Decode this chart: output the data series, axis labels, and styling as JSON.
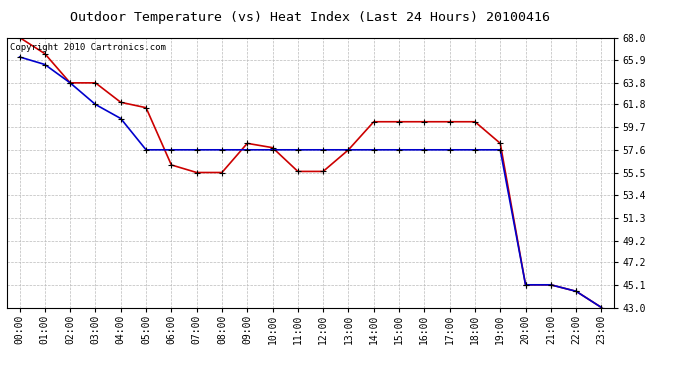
{
  "title": "Outdoor Temperature (vs) Heat Index (Last 24 Hours) 20100416",
  "copyright_text": "Copyright 2010 Cartronics.com",
  "x_labels": [
    "00:00",
    "01:00",
    "02:00",
    "03:00",
    "04:00",
    "05:00",
    "06:00",
    "07:00",
    "08:00",
    "09:00",
    "10:00",
    "11:00",
    "12:00",
    "13:00",
    "14:00",
    "15:00",
    "16:00",
    "17:00",
    "18:00",
    "19:00",
    "20:00",
    "21:00",
    "22:00",
    "23:00"
  ],
  "ylim": [
    43.0,
    68.0
  ],
  "yticks": [
    43.0,
    45.1,
    47.2,
    49.2,
    51.3,
    53.4,
    55.5,
    57.6,
    59.7,
    61.8,
    63.8,
    65.9,
    68.0
  ],
  "red_data": [
    68.0,
    66.5,
    63.8,
    63.8,
    62.0,
    61.5,
    56.2,
    55.5,
    55.5,
    58.2,
    57.8,
    55.6,
    55.6,
    57.6,
    60.2,
    60.2,
    60.2,
    60.2,
    60.2,
    58.2,
    45.1,
    45.1,
    44.5,
    43.0
  ],
  "blue_data": [
    66.2,
    65.5,
    63.8,
    61.8,
    60.5,
    57.6,
    57.6,
    57.6,
    57.6,
    57.6,
    57.6,
    57.6,
    57.6,
    57.6,
    57.6,
    57.6,
    57.6,
    57.6,
    57.6,
    57.6,
    45.1,
    45.1,
    44.5,
    43.0
  ],
  "red_color": "#cc0000",
  "blue_color": "#0000cc",
  "marker_color": "#000000",
  "bg_color": "#ffffff",
  "grid_color": "#bbbbbb",
  "title_fontsize": 9.5,
  "tick_fontsize": 7,
  "copyright_fontsize": 6.5,
  "linewidth": 1.2,
  "markersize": 4
}
